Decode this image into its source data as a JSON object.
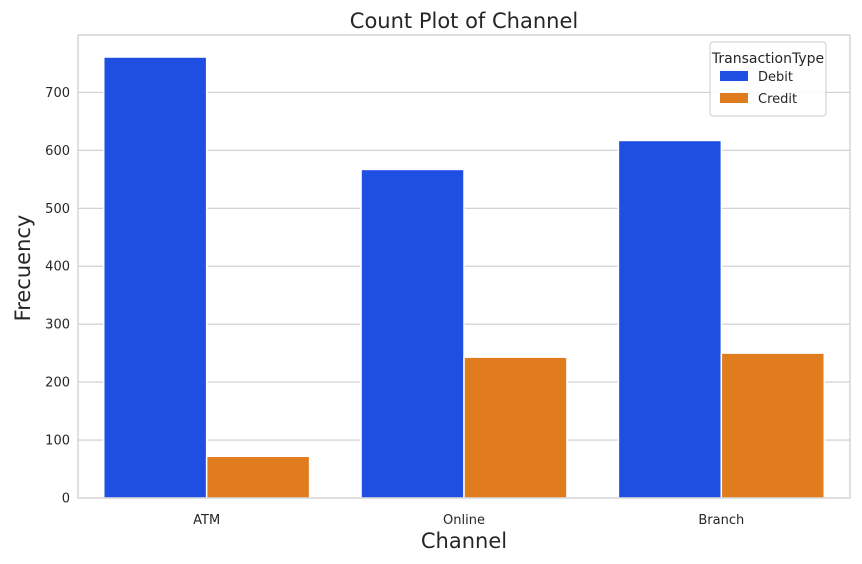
{
  "chart_data": {
    "type": "bar",
    "title": "Count Plot of Channel",
    "xlabel": "Channel",
    "ylabel": "Frecuency",
    "categories": [
      "ATM",
      "Online",
      "Branch"
    ],
    "series": [
      {
        "name": "Debit",
        "values": [
          761,
          567,
          617
        ],
        "color": "#1f4fe2"
      },
      {
        "name": "Credit",
        "values": [
          72,
          243,
          250
        ],
        "color": "#e07c1e"
      }
    ],
    "yticks": [
      0,
      100,
      200,
      300,
      400,
      500,
      600,
      700
    ],
    "ylim": [
      0,
      799
    ],
    "grid": true,
    "legend": {
      "title": "TransactionType",
      "placement": "top-right"
    }
  }
}
